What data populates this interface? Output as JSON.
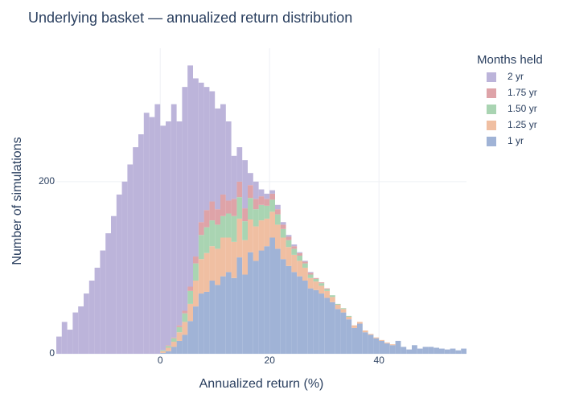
{
  "chart_data": {
    "type": "histogram",
    "barmode": "stack",
    "title": "Underlying basket — annualized return distribution",
    "x_label": "Annualized return (%)",
    "y_label": "Number of simulations",
    "legend_title": "Months held",
    "legend_position": "right",
    "bins": [
      -19,
      -18,
      -17,
      -16,
      -15,
      -14,
      -13,
      -12,
      -11,
      -10,
      -9,
      -8,
      -7,
      -6,
      -5,
      -4,
      -3,
      -2,
      -1,
      0,
      1,
      2,
      3,
      4,
      5,
      6,
      7,
      8,
      9,
      10,
      11,
      12,
      13,
      14,
      15,
      16,
      17,
      18,
      19,
      20,
      21,
      22,
      23,
      24,
      25,
      26,
      27,
      28,
      29,
      30,
      31,
      32,
      33,
      34,
      35,
      36,
      37,
      38,
      39,
      40,
      41,
      42,
      43,
      44,
      45,
      46,
      47,
      48,
      49,
      50,
      51,
      52,
      53,
      54,
      55,
      56
    ],
    "series": [
      {
        "name": "2 yr",
        "color": "#bcb4da",
        "values": [
          20,
          37,
          28,
          48,
          55,
          70,
          85,
          100,
          120,
          140,
          160,
          185,
          200,
          220,
          240,
          255,
          280,
          275,
          290,
          261,
          260,
          271,
          237,
          260,
          257,
          207,
          162,
          143,
          128,
          117,
          105,
          92,
          50,
          40,
          56,
          14,
          20,
          8,
          6,
          4,
          5,
          3,
          2,
          2,
          1,
          1,
          1,
          0,
          0,
          0,
          0,
          0,
          0,
          0,
          0,
          0,
          0,
          0,
          0,
          0,
          0,
          0,
          0,
          0,
          0,
          0,
          0,
          0,
          0,
          0,
          0,
          0,
          0,
          0,
          0
        ]
      },
      {
        "name": "1.75 yr",
        "color": "#dea3a8",
        "values": [
          0,
          0,
          0,
          0,
          0,
          0,
          0,
          0,
          0,
          0,
          0,
          0,
          0,
          0,
          0,
          0,
          0,
          0,
          0,
          0,
          1,
          1,
          2,
          3,
          5,
          8,
          15,
          20,
          22,
          18,
          25,
          15,
          20,
          18,
          15,
          15,
          12,
          10,
          8,
          7,
          6,
          5,
          4,
          3,
          3,
          2,
          2,
          1,
          1,
          1,
          0,
          0,
          0,
          0,
          0,
          0,
          0,
          0,
          0,
          0,
          0,
          0,
          0,
          0,
          0,
          0,
          0,
          0,
          0,
          0,
          0,
          0,
          0,
          0,
          0
        ]
      },
      {
        "name": "1.50 yr",
        "color": "#a9d4b2",
        "values": [
          0,
          0,
          0,
          0,
          0,
          0,
          0,
          0,
          0,
          0,
          0,
          0,
          0,
          0,
          0,
          0,
          0,
          0,
          0,
          1,
          2,
          4,
          6,
          10,
          15,
          20,
          28,
          30,
          30,
          28,
          25,
          28,
          30,
          25,
          22,
          25,
          20,
          18,
          15,
          14,
          12,
          10,
          8,
          7,
          6,
          5,
          4,
          3,
          3,
          2,
          2,
          1,
          1,
          1,
          0,
          0,
          0,
          0,
          0,
          0,
          0,
          0,
          0,
          0,
          0,
          0,
          0,
          0,
          0,
          0,
          0,
          0,
          0,
          0,
          0
        ]
      },
      {
        "name": "1.25 yr",
        "color": "#f0bfa2",
        "values": [
          0,
          0,
          0,
          0,
          0,
          0,
          0,
          0,
          0,
          0,
          0,
          0,
          0,
          0,
          0,
          0,
          0,
          0,
          0,
          2,
          4,
          6,
          10,
          15,
          20,
          30,
          40,
          45,
          40,
          42,
          45,
          40,
          42,
          45,
          40,
          38,
          40,
          35,
          32,
          30,
          28,
          25,
          22,
          20,
          18,
          15,
          12,
          10,
          9,
          8,
          6,
          5,
          4,
          3,
          3,
          2,
          2,
          1,
          1,
          1,
          1,
          1,
          0,
          0,
          0,
          0,
          0,
          0,
          0,
          0,
          0,
          0,
          0,
          0,
          0
        ]
      },
      {
        "name": "1 yr",
        "color": "#a0b3d6",
        "values": [
          0,
          0,
          0,
          0,
          0,
          0,
          0,
          0,
          0,
          0,
          0,
          0,
          0,
          0,
          0,
          0,
          0,
          0,
          0,
          1,
          3,
          8,
          15,
          22,
          38,
          55,
          70,
          72,
          85,
          80,
          90,
          95,
          88,
          112,
          92,
          118,
          108,
          120,
          125,
          135,
          122,
          110,
          102,
          95,
          90,
          85,
          76,
          74,
          70,
          65,
          60,
          52,
          48,
          40,
          30,
          35,
          25,
          22,
          18,
          15,
          12,
          10,
          15,
          8,
          5,
          10,
          6,
          8,
          8,
          7,
          6,
          5,
          6,
          4,
          6
        ]
      }
    ],
    "xlim": [
      -19,
      56
    ],
    "xticks": [
      0,
      20,
      40
    ],
    "ylim": [
      0,
      355
    ],
    "yticks": [
      0,
      200
    ],
    "grid": true
  }
}
